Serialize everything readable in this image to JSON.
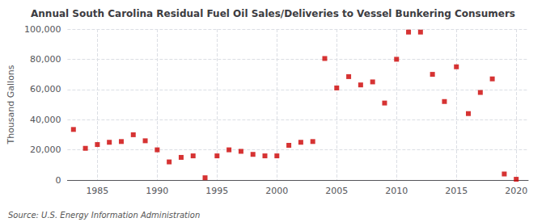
{
  "chart_data": {
    "type": "scatter",
    "title": "Annual South Carolina Residual Fuel Oil Sales/Deliveries to Vessel Bunkering Consumers",
    "ylabel": "Thousand Gallons",
    "annotations": [
      "Source: U.S. Energy Information Administration"
    ],
    "x": [
      1983,
      1984,
      1985,
      1986,
      1987,
      1988,
      1989,
      1990,
      1991,
      1992,
      1993,
      1994,
      1995,
      1996,
      1997,
      1998,
      1999,
      2000,
      2001,
      2002,
      2003,
      2004,
      2005,
      2006,
      2007,
      2008,
      2009,
      2010,
      2011,
      2012,
      2013,
      2014,
      2015,
      2016,
      2017,
      2018,
      2019,
      2020
    ],
    "values": [
      33500,
      21000,
      23500,
      25000,
      25500,
      30000,
      26000,
      20000,
      12000,
      15000,
      16000,
      1500,
      16000,
      20000,
      19000,
      17000,
      16000,
      16000,
      23000,
      25000,
      25500,
      80500,
      61000,
      68500,
      63000,
      65000,
      51000,
      80000,
      98000,
      98000,
      70000,
      52000,
      75000,
      44000,
      58000,
      67000,
      4000,
      500
    ],
    "color": "#cc0000",
    "marker": "square",
    "xlim": [
      1982.5,
      2021
    ],
    "xticks": [
      1985,
      1990,
      1995,
      2000,
      2005,
      2010,
      2015,
      2020
    ],
    "ylim": [
      0,
      100000
    ],
    "yticks": [
      0,
      {
        "value": 20000,
        "label": "20,000"
      },
      {
        "value": 40000,
        "label": "40,000"
      },
      {
        "value": 60000,
        "label": "60,000"
      },
      {
        "value": 80000,
        "label": "80,000"
      },
      {
        "value": 100000,
        "label": "100,000"
      }
    ],
    "grid": true
  }
}
